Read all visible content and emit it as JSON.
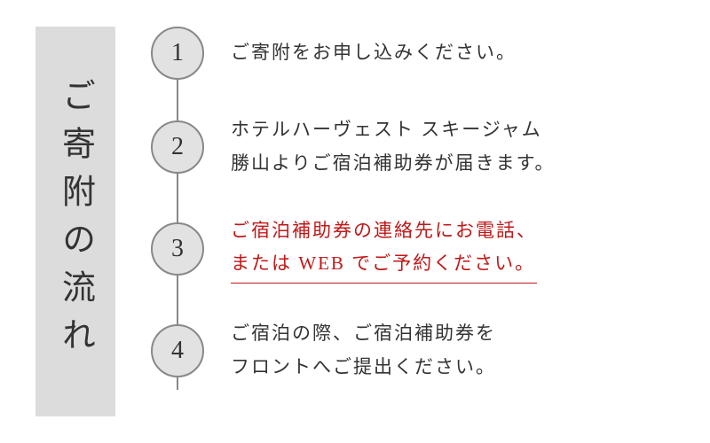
{
  "title": "ご寄附の流れ",
  "steps": [
    {
      "num": "1",
      "text": "ご寄附をお申し込みください。",
      "highlight": false
    },
    {
      "num": "2",
      "text": "ホテルハーヴェスト スキージャム\n勝山よりご宿泊補助券が届きます。",
      "highlight": false
    },
    {
      "num": "3",
      "text": "ご宿泊補助券の連絡先にお電話、\nまたは WEB でご予約ください。",
      "highlight": true
    },
    {
      "num": "4",
      "text": "ご宿泊の際、ご宿泊補助券を\nフロントへご提出ください。",
      "highlight": false
    }
  ],
  "colors": {
    "title_bg": "#dcdcdc",
    "circle_bg": "#e2e2e2",
    "circle_border": "#888888",
    "text": "#333333",
    "highlight": "#c01818",
    "connector": "#888888"
  }
}
